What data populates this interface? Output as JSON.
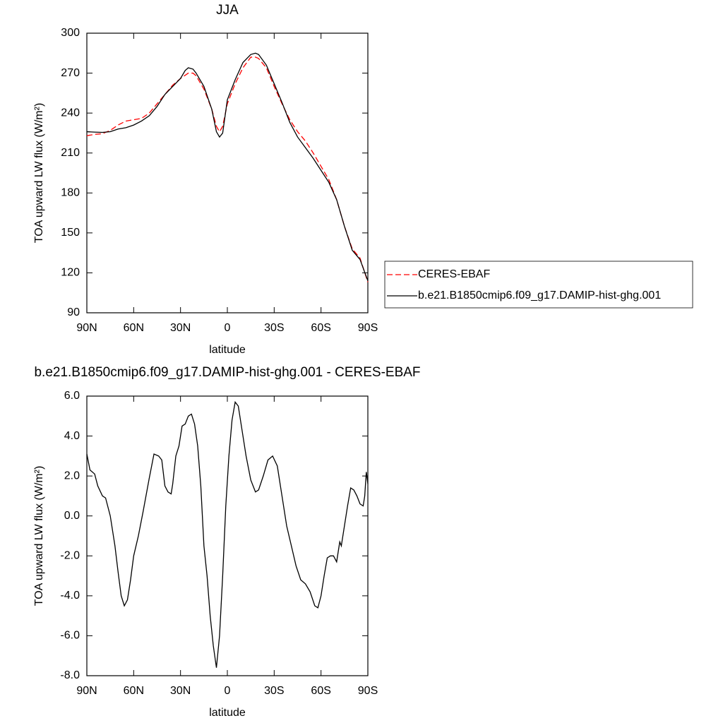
{
  "chart_data": [
    {
      "type": "line",
      "title": "JJA",
      "xlabel": "latitude",
      "ylabel": "TOA upward LW flux (W/m²)",
      "xlim": [
        90,
        -90
      ],
      "xticks": [
        {
          "value": 90,
          "label": "90N"
        },
        {
          "value": 60,
          "label": "60N"
        },
        {
          "value": 30,
          "label": "30N"
        },
        {
          "value": 0,
          "label": "0"
        },
        {
          "value": -30,
          "label": "30S"
        },
        {
          "value": -60,
          "label": "60S"
        },
        {
          "value": -90,
          "label": "90S"
        }
      ],
      "ylim": [
        90,
        300
      ],
      "yticks": [
        90,
        120,
        150,
        180,
        210,
        240,
        270,
        300
      ],
      "legend": "right",
      "series": [
        {
          "name": "CERES-EBAF",
          "color": "#ff0000",
          "line_style": "dashed",
          "x": [
            90,
            85,
            80,
            75,
            70,
            65,
            60,
            55,
            50,
            45,
            40,
            35,
            30,
            25,
            22,
            20,
            15,
            10,
            7,
            5,
            3,
            0,
            -5,
            -10,
            -15,
            -18,
            -20,
            -25,
            -30,
            -35,
            -40,
            -45,
            -50,
            -55,
            -60,
            -65,
            -70,
            -75,
            -80,
            -85,
            -90
          ],
          "values": [
            223,
            224,
            224.5,
            227,
            231,
            234,
            235,
            236,
            240,
            247,
            254,
            261,
            266,
            270,
            270,
            268,
            258,
            243,
            230,
            226,
            230,
            247,
            262,
            274,
            282,
            282,
            281,
            274,
            260,
            247,
            235,
            226,
            219,
            210,
            200,
            190,
            175,
            155,
            138,
            131,
            113
          ]
        },
        {
          "name": "b.e21.B1850cmip6.f09_g17.DAMIP-hist-ghg.001",
          "color": "#000000",
          "line_style": "solid",
          "x": [
            90,
            85,
            80,
            75,
            70,
            65,
            60,
            55,
            50,
            45,
            40,
            35,
            30,
            27,
            25,
            22,
            20,
            15,
            10,
            7,
            5,
            3,
            0,
            -5,
            -10,
            -15,
            -18,
            -20,
            -25,
            -30,
            -35,
            -40,
            -45,
            -50,
            -55,
            -60,
            -65,
            -70,
            -75,
            -80,
            -85,
            -90
          ],
          "values": [
            226,
            225.7,
            225.5,
            226,
            228,
            229,
            231,
            234,
            238,
            245,
            254,
            260,
            266,
            272,
            274,
            273,
            270,
            260,
            243,
            226,
            222,
            225,
            250,
            265,
            278,
            284,
            285,
            284,
            276,
            262,
            248,
            233,
            222,
            214,
            206,
            197,
            188,
            175,
            155,
            137,
            130,
            114
          ]
        }
      ]
    },
    {
      "type": "line",
      "title": "b.e21.B1850cmip6.f09_g17.DAMIP-hist-ghg.001 - CERES-EBAF",
      "xlabel": "latitude",
      "ylabel": "TOA upward LW flux (W/m²)",
      "xlim": [
        90,
        -90
      ],
      "xticks": [
        {
          "value": 90,
          "label": "90N"
        },
        {
          "value": 60,
          "label": "60N"
        },
        {
          "value": 30,
          "label": "30N"
        },
        {
          "value": 0,
          "label": "0"
        },
        {
          "value": -30,
          "label": "30S"
        },
        {
          "value": -60,
          "label": "60S"
        },
        {
          "value": -90,
          "label": "90S"
        }
      ],
      "ylim": [
        -8,
        6
      ],
      "yticks": [
        {
          "value": -8,
          "label": "-8.0"
        },
        {
          "value": -6,
          "label": "-6.0"
        },
        {
          "value": -4,
          "label": "-4.0"
        },
        {
          "value": -2,
          "label": "-2.0"
        },
        {
          "value": 0,
          "label": "0.0"
        },
        {
          "value": 2,
          "label": "2.0"
        },
        {
          "value": 4,
          "label": "4.0"
        },
        {
          "value": 6,
          "label": "6.0"
        }
      ],
      "series": [
        {
          "color": "#000000",
          "line_style": "solid",
          "x": [
            90,
            88,
            85,
            83,
            80,
            78,
            75,
            72,
            70,
            68,
            66,
            64,
            62,
            60,
            57,
            54,
            50,
            47,
            44,
            42,
            40,
            38,
            36,
            35,
            33,
            31,
            29,
            27,
            25,
            23,
            21,
            19,
            17,
            15,
            13,
            11,
            9,
            7,
            5,
            3,
            1,
            -1,
            -3,
            -5,
            -7,
            -9,
            -12,
            -15,
            -18,
            -20,
            -23,
            -26,
            -29,
            -32,
            -35,
            -38,
            -41,
            -44,
            -47,
            -50,
            -53,
            -56,
            -58,
            -60,
            -62,
            -64,
            -66,
            -68,
            -70,
            -72,
            -73,
            -75,
            -77,
            -79,
            -81,
            -83,
            -85,
            -87,
            -88,
            -89,
            -90
          ],
          "values": [
            3.1,
            2.3,
            2.1,
            1.5,
            1.0,
            0.9,
            0,
            -1.5,
            -2.8,
            -4.0,
            -4.5,
            -4.2,
            -3.2,
            -2.0,
            -1.0,
            0.2,
            1.9,
            3.1,
            3.0,
            2.8,
            1.5,
            1.2,
            1.1,
            1.6,
            3.0,
            3.5,
            4.5,
            4.6,
            5.0,
            5.1,
            4.6,
            3.5,
            1.5,
            -1.5,
            -3.0,
            -5.0,
            -6.5,
            -7.6,
            -6.0,
            -3.0,
            0.5,
            3.0,
            4.8,
            5.7,
            5.5,
            4.5,
            3.0,
            1.8,
            1.2,
            1.3,
            2.0,
            2.8,
            3.0,
            2.5,
            1.0,
            -0.5,
            -1.5,
            -2.5,
            -3.2,
            -3.4,
            -3.8,
            -4.5,
            -4.6,
            -4.0,
            -3.0,
            -2.1,
            -2.0,
            -2.0,
            -2.3,
            -1.3,
            -1.5,
            -0.5,
            0.5,
            1.4,
            1.3,
            1.0,
            0.6,
            0.5,
            1.0,
            2.2,
            1.6
          ]
        }
      ]
    }
  ]
}
